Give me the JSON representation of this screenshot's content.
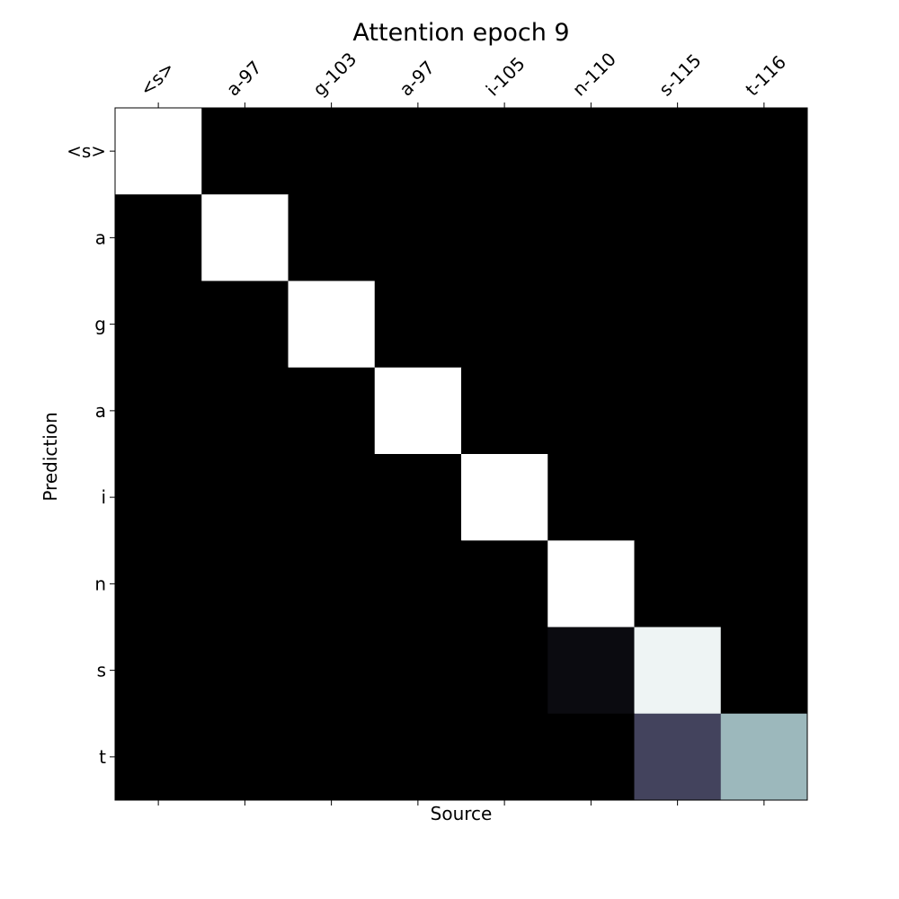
{
  "chart_data": {
    "type": "heatmap",
    "title": "Attention epoch 9",
    "xlabel": "Source",
    "ylabel": "Prediction",
    "x_labels": [
      "<s>",
      "a-97",
      "g-103",
      "a-97",
      "i-105",
      "n-110",
      "s-115",
      "t-116"
    ],
    "y_labels": [
      "<s>",
      "a",
      "g",
      "a",
      "i",
      "n",
      "s",
      "t"
    ],
    "values": [
      [
        1.0,
        0.0,
        0.0,
        0.0,
        0.0,
        0.0,
        0.0,
        0.0
      ],
      [
        0.0,
        1.0,
        0.0,
        0.0,
        0.0,
        0.0,
        0.0,
        0.0
      ],
      [
        0.0,
        0.0,
        1.0,
        0.0,
        0.0,
        0.0,
        0.0,
        0.0
      ],
      [
        0.0,
        0.0,
        0.0,
        1.0,
        0.0,
        0.0,
        0.0,
        0.0
      ],
      [
        0.0,
        0.0,
        0.0,
        0.0,
        1.0,
        0.0,
        0.0,
        0.0
      ],
      [
        0.0,
        0.0,
        0.0,
        0.0,
        0.0,
        1.0,
        0.0,
        0.0
      ],
      [
        0.0,
        0.0,
        0.0,
        0.0,
        0.0,
        0.05,
        0.95,
        0.0
      ],
      [
        0.0,
        0.0,
        0.0,
        0.0,
        0.0,
        0.0,
        0.3,
        0.7
      ]
    ],
    "colormap": "bone",
    "value_range": [
      0,
      1
    ],
    "x_tick_position": "top",
    "grid": false,
    "legend": false
  }
}
